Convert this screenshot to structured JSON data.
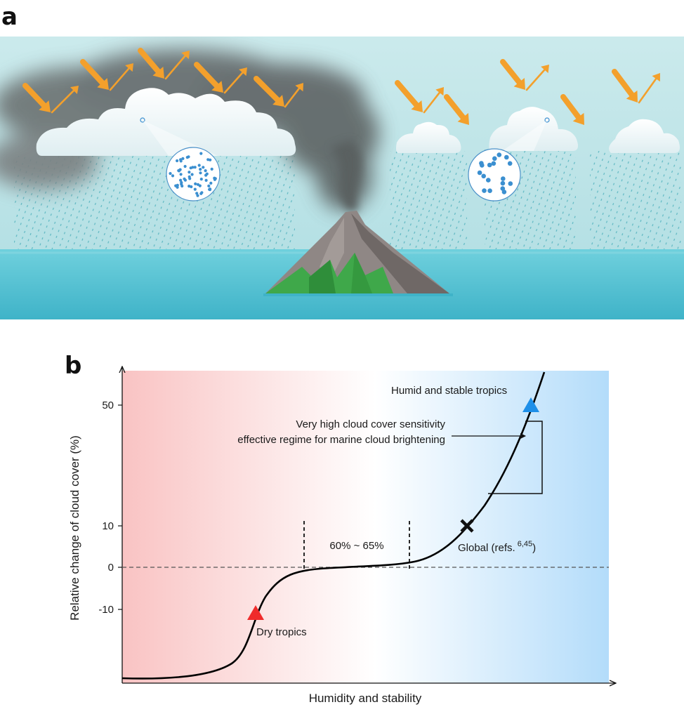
{
  "panel_a": {
    "letter": "a"
  },
  "panel_b": {
    "letter": "b"
  },
  "chart_data": {
    "type": "line",
    "xlabel": "Humidity and stability",
    "ylabel": "Relative change of cloud cover (%)",
    "y_ticks": [
      {
        "value": 50,
        "label": "50"
      },
      {
        "value": 10,
        "label": "10"
      },
      {
        "value": 0,
        "label": "0"
      },
      {
        "value": -10,
        "label": "-10"
      }
    ],
    "x_ticks": [],
    "y_scale": "non-linear (stretched above 10)",
    "zero_line": true,
    "background_gradient": [
      "#f9c3c3",
      "#ffffff",
      "#b3dcfa"
    ],
    "curve_color": "#000000",
    "markers": [
      {
        "name": "dry-tropics",
        "label": "Dry tropics",
        "shape": "triangle",
        "color": "#ef2b2b"
      },
      {
        "name": "global",
        "label": "Global (refs.",
        "superscript": "6,45",
        "label_end": ")",
        "shape": "cross",
        "color": "#111111"
      },
      {
        "name": "humid-stable",
        "label": "Humid and stable tropics",
        "shape": "triangle",
        "color": "#1e8fe8"
      }
    ],
    "range_annotation": "60% ~ 65%",
    "callout_lines": [
      "Very high cloud cover sensitivity",
      "effective regime for marine cloud brightening"
    ]
  },
  "colors": {
    "sky": "#bfe3e6",
    "ocean": "#52c2d4",
    "smoke": "#5f6566",
    "arrow": "#f3a02c",
    "droplet": "#3b8fd0",
    "volcano": "#8a8280",
    "vegetation": "#3fa84a"
  }
}
